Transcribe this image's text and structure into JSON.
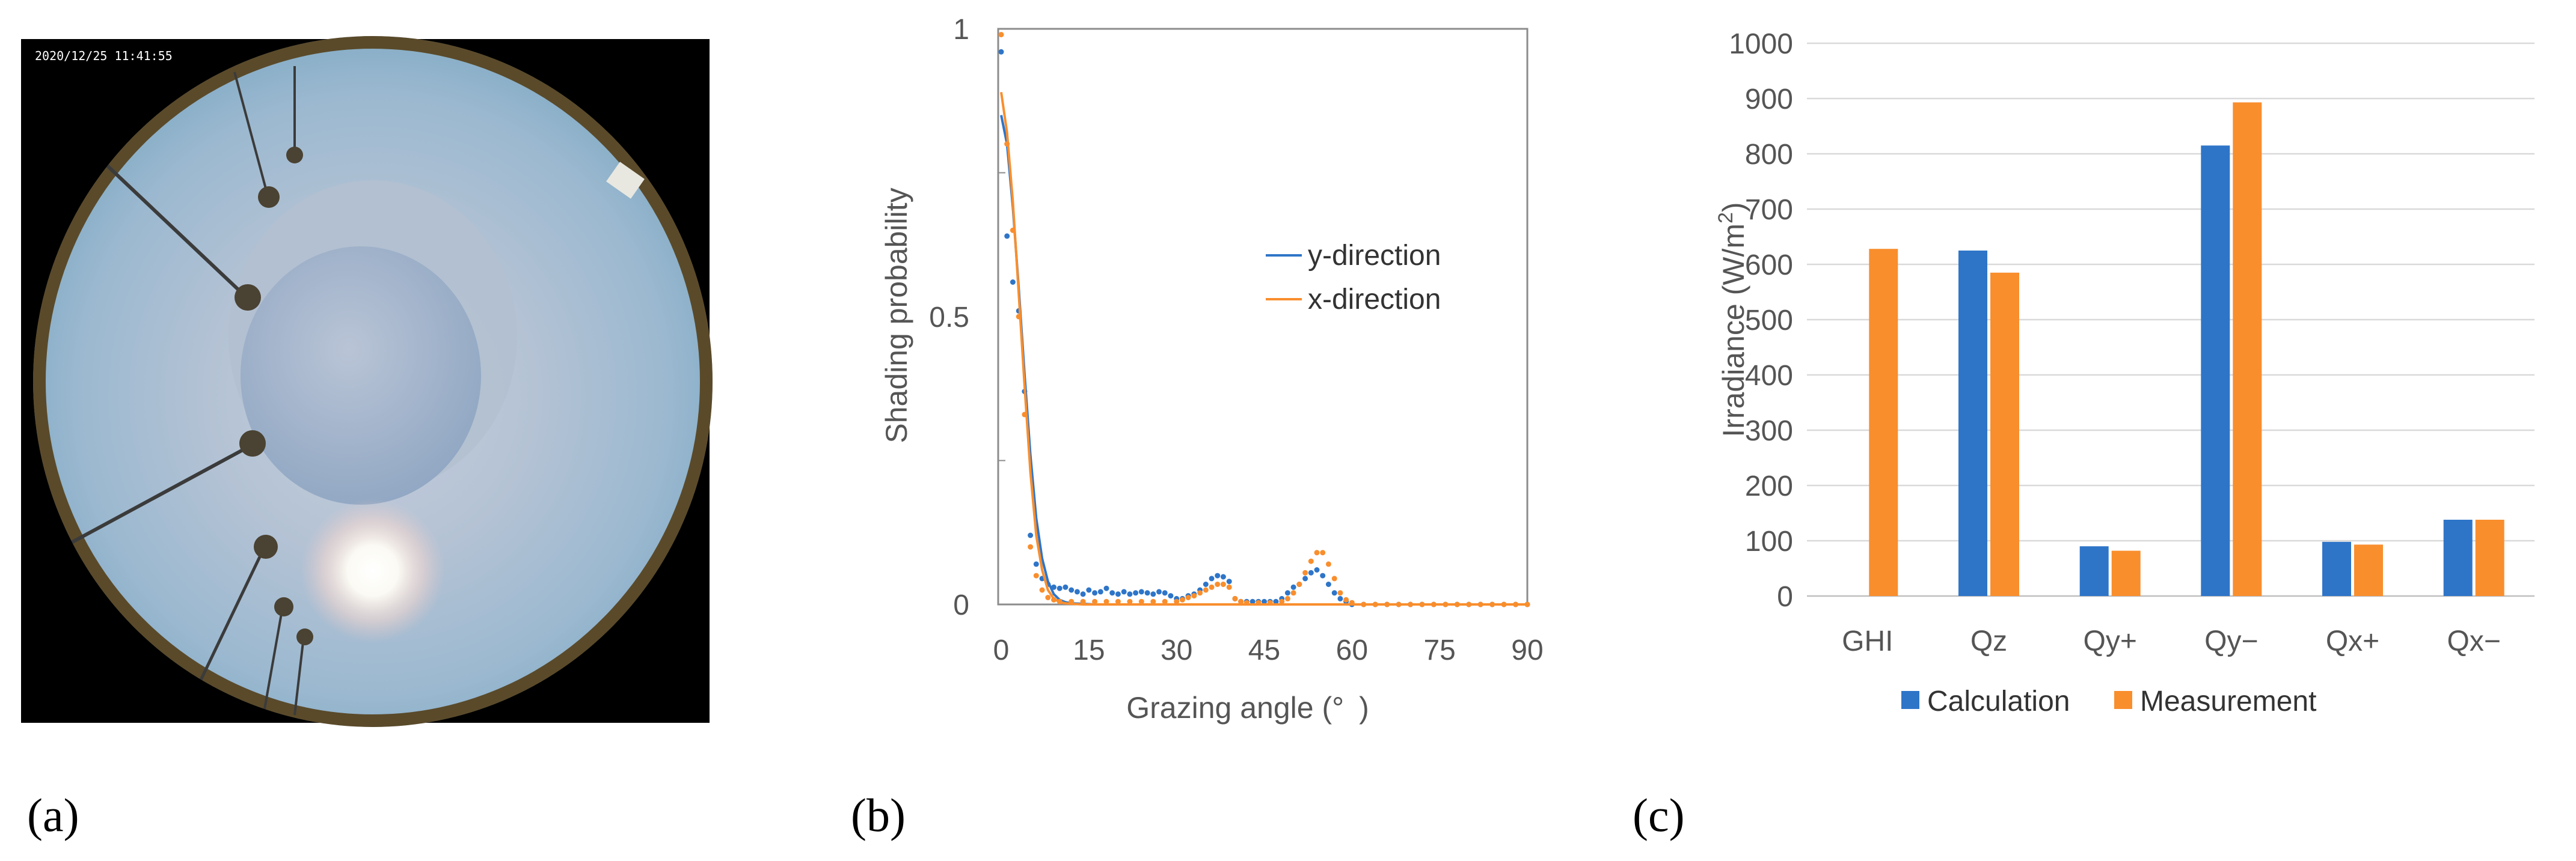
{
  "panels": {
    "a": {
      "label": "(a)",
      "timestamp": "2020/12/25 11:41:55"
    },
    "b": {
      "label": "(b)"
    },
    "c": {
      "label": "(c)"
    }
  },
  "colors": {
    "blue": "#2E75C8",
    "orange": "#F98E2D",
    "grid": "#D9D9D9",
    "axis": "#8C8C8C"
  },
  "chart_data": [
    {
      "id": "shading",
      "type": "line",
      "title": "",
      "xlabel": "Grazing angle (° )",
      "ylabel": "Shading probability",
      "xlim": [
        0,
        90
      ],
      "ylim": [
        0,
        1
      ],
      "xticks": [
        0,
        15,
        30,
        45,
        60,
        75,
        90
      ],
      "yticks": [
        {
          "v": 0,
          "label": "0"
        },
        {
          "v": 0.5,
          "label": "0.5"
        },
        {
          "v": 1,
          "label": "1"
        }
      ],
      "legend_position": "center-right",
      "series": [
        {
          "name": "y-direction",
          "color": "#2E75C8",
          "x": [
            0,
            1,
            2,
            3,
            4,
            5,
            6,
            7,
            8,
            9,
            10,
            11,
            12,
            14,
            16,
            18,
            22,
            30,
            45,
            60,
            75,
            90
          ],
          "y": [
            0.85,
            0.8,
            0.69,
            0.55,
            0.4,
            0.26,
            0.15,
            0.08,
            0.04,
            0.018,
            0.008,
            0.004,
            0.002,
            0.001,
            0,
            0,
            0,
            0,
            0,
            0,
            0,
            0
          ],
          "dots_x": [
            0,
            1,
            2,
            3,
            4,
            5,
            6,
            7,
            8,
            9,
            10,
            11,
            12,
            13,
            14,
            15,
            16,
            17,
            18,
            19,
            20,
            21,
            22,
            23,
            24,
            25,
            26,
            27,
            28,
            29,
            30,
            31,
            32,
            33,
            34,
            35,
            36,
            37,
            38,
            39,
            40,
            41,
            42,
            43,
            44,
            45,
            46,
            47,
            48,
            49,
            50,
            51,
            52,
            53,
            54,
            55,
            56,
            57,
            58,
            59,
            60,
            62,
            64,
            66,
            68,
            70,
            72,
            74,
            76,
            78,
            80,
            82,
            84,
            86,
            88,
            90
          ],
          "dots_y": [
            0.96,
            0.64,
            0.56,
            0.51,
            0.37,
            0.12,
            0.07,
            0.045,
            0.035,
            0.03,
            0.028,
            0.03,
            0.025,
            0.022,
            0.018,
            0.025,
            0.02,
            0.022,
            0.028,
            0.02,
            0.018,
            0.022,
            0.018,
            0.02,
            0.022,
            0.02,
            0.018,
            0.022,
            0.02,
            0.015,
            0.01,
            0.01,
            0.015,
            0.018,
            0.025,
            0.035,
            0.045,
            0.05,
            0.048,
            0.04,
            0.01,
            0.005,
            0.005,
            0.005,
            0.005,
            0.005,
            0.005,
            0.005,
            0.01,
            0.02,
            0.03,
            0.035,
            0.045,
            0.055,
            0.06,
            0.05,
            0.035,
            0.02,
            0.01,
            0.005,
            0,
            0,
            0,
            0,
            0,
            0,
            0,
            0,
            0,
            0,
            0,
            0,
            0,
            0,
            0,
            0
          ]
        },
        {
          "name": "x-direction",
          "color": "#F98E2D",
          "x": [
            0,
            1,
            2,
            3,
            4,
            5,
            6,
            7,
            8,
            9,
            10,
            11,
            12,
            14,
            16,
            18,
            22,
            30,
            45,
            60,
            75,
            90
          ],
          "y": [
            0.89,
            0.82,
            0.7,
            0.54,
            0.38,
            0.23,
            0.12,
            0.06,
            0.025,
            0.01,
            0.004,
            0.002,
            0.001,
            0,
            0,
            0,
            0,
            0,
            0,
            0,
            0,
            0
          ],
          "dots_x": [
            0,
            1,
            2,
            3,
            4,
            5,
            6,
            7,
            8,
            9,
            10,
            12,
            14,
            16,
            18,
            20,
            22,
            24,
            26,
            28,
            30,
            31,
            32,
            33,
            34,
            35,
            36,
            37,
            38,
            39,
            40,
            41,
            42,
            44,
            46,
            48,
            49,
            50,
            51,
            52,
            53,
            54,
            55,
            56,
            57,
            58,
            59,
            60,
            62,
            64,
            66,
            68,
            70,
            72,
            74,
            76,
            78,
            80,
            82,
            84,
            86,
            88,
            90
          ],
          "dots_y": [
            0.99,
            0.8,
            0.65,
            0.5,
            0.33,
            0.1,
            0.05,
            0.025,
            0.012,
            0.008,
            0.005,
            0.005,
            0.005,
            0.005,
            0.005,
            0.005,
            0.005,
            0.005,
            0.005,
            0.005,
            0.005,
            0.008,
            0.012,
            0.015,
            0.02,
            0.025,
            0.03,
            0.035,
            0.035,
            0.03,
            0.01,
            0.005,
            0.003,
            0.003,
            0.003,
            0.005,
            0.01,
            0.02,
            0.035,
            0.055,
            0.075,
            0.09,
            0.09,
            0.07,
            0.045,
            0.02,
            0.008,
            0.003,
            0,
            0,
            0,
            0,
            0,
            0,
            0,
            0,
            0,
            0,
            0,
            0,
            0,
            0,
            0
          ]
        }
      ]
    },
    {
      "id": "irradiance",
      "type": "bar",
      "title": "",
      "xlabel": "",
      "ylabel_prefix": "Irradiance (W/m",
      "ylabel_sup": "2",
      "ylabel_suffix": ")",
      "ylim": [
        0,
        1000
      ],
      "yticks": [
        0,
        100,
        200,
        300,
        400,
        500,
        600,
        700,
        800,
        900,
        1000
      ],
      "grid": true,
      "legend_position": "bottom",
      "categories": [
        "GHI",
        "Qz",
        "Qy+",
        "Qy−",
        "Qx+",
        "Qx−"
      ],
      "series": [
        {
          "name": "Calculation",
          "color": "#2E75C8",
          "values": [
            null,
            625,
            90,
            815,
            98,
            138
          ]
        },
        {
          "name": "Measurement",
          "color": "#F98E2D",
          "values": [
            628,
            585,
            82,
            893,
            93,
            138
          ]
        }
      ]
    }
  ]
}
